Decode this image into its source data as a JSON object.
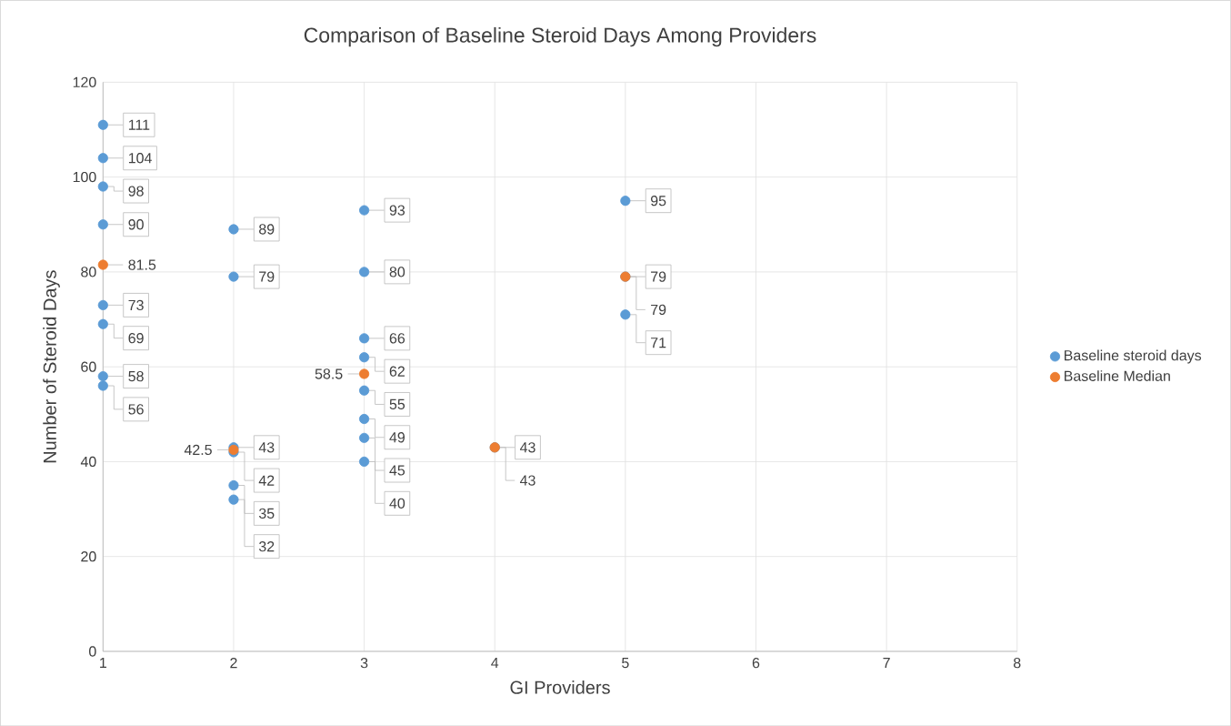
{
  "chart_data": {
    "type": "scatter",
    "title": "Comparison of Baseline Steroid Days Among Providers",
    "xlabel": "GI Providers",
    "ylabel": "Number of Steroid Days",
    "xlim": [
      1,
      8
    ],
    "xticks": [
      1,
      2,
      3,
      4,
      5,
      6,
      7,
      8
    ],
    "ylim": [
      0,
      120
    ],
    "yticks": [
      0,
      20,
      40,
      60,
      80,
      100,
      120
    ],
    "grid": true,
    "legend": "right",
    "marker": "circle",
    "data_labels": true,
    "series": [
      {
        "name": "Baseline steroid days",
        "color": "#5b9bd5",
        "x": [
          1,
          1,
          1,
          1,
          1,
          1,
          1,
          1,
          2,
          2,
          2,
          2,
          2,
          2,
          3,
          3,
          3,
          3,
          3,
          3,
          3,
          3,
          4,
          5,
          5,
          5
        ],
        "values": [
          111,
          104,
          98,
          90,
          73,
          69,
          58,
          56,
          89,
          79,
          43,
          42,
          35,
          32,
          93,
          80,
          66,
          62,
          55,
          49,
          45,
          40,
          43,
          95,
          79,
          71
        ]
      },
      {
        "name": "Baseline Median",
        "color": "#ed7d31",
        "x": [
          1,
          2,
          3,
          4,
          5
        ],
        "values": [
          81.5,
          42.5,
          58.5,
          43,
          79
        ]
      }
    ]
  }
}
